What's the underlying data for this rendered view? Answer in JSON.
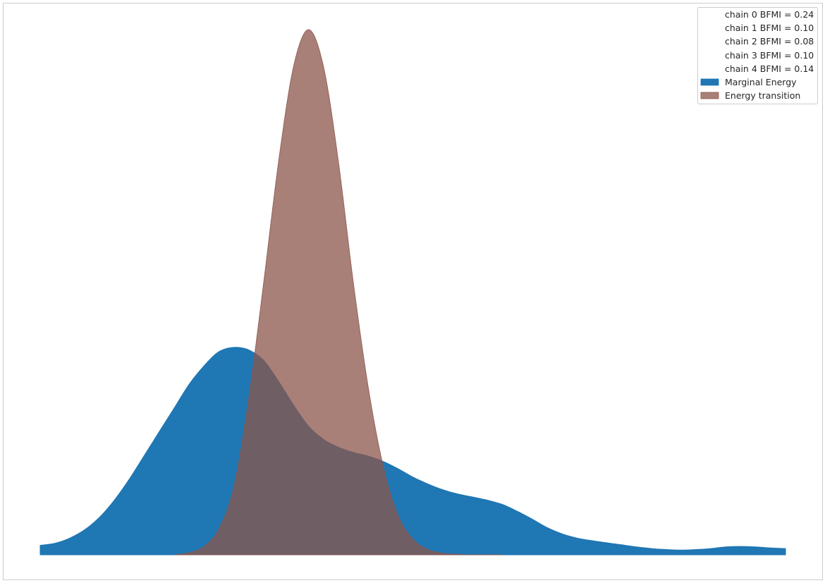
{
  "chart_data": {
    "type": "area",
    "title": "",
    "xlabel": "",
    "ylabel": "",
    "grid": false,
    "x_ticks_visible": false,
    "y_ticks_visible": false,
    "legend_position": "top-right",
    "legend": {
      "bfmi_entries": [
        {
          "label": "chain  0 BFMI = 0.24"
        },
        {
          "label": "chain  1 BFMI = 0.10"
        },
        {
          "label": "chain  2 BFMI = 0.08"
        },
        {
          "label": "chain  3 BFMI = 0.10"
        },
        {
          "label": "chain  4 BFMI = 0.14"
        }
      ]
    },
    "xlim": [
      0,
      1
    ],
    "ylim": [
      0,
      1
    ],
    "series": [
      {
        "name": "Marginal Energy",
        "color": "#1f77b4",
        "opacity": 1.0,
        "x": [
          0.0,
          0.02,
          0.04,
          0.06,
          0.08,
          0.1,
          0.12,
          0.14,
          0.16,
          0.18,
          0.2,
          0.22,
          0.24,
          0.26,
          0.28,
          0.3,
          0.32,
          0.34,
          0.36,
          0.38,
          0.4,
          0.42,
          0.44,
          0.46,
          0.48,
          0.5,
          0.52,
          0.54,
          0.56,
          0.58,
          0.6,
          0.62,
          0.64,
          0.66,
          0.68,
          0.7,
          0.72,
          0.74,
          0.76,
          0.78,
          0.8,
          0.82,
          0.84,
          0.86,
          0.88,
          0.9,
          0.92,
          0.94,
          0.96,
          0.98,
          1.0
        ],
        "y": [
          0.018,
          0.022,
          0.032,
          0.048,
          0.072,
          0.105,
          0.145,
          0.19,
          0.235,
          0.28,
          0.325,
          0.36,
          0.387,
          0.395,
          0.39,
          0.37,
          0.33,
          0.285,
          0.245,
          0.22,
          0.205,
          0.195,
          0.188,
          0.178,
          0.164,
          0.148,
          0.135,
          0.124,
          0.116,
          0.11,
          0.104,
          0.096,
          0.083,
          0.068,
          0.052,
          0.04,
          0.032,
          0.027,
          0.023,
          0.019,
          0.015,
          0.012,
          0.01,
          0.009,
          0.01,
          0.012,
          0.015,
          0.016,
          0.015,
          0.013,
          0.012
        ]
      },
      {
        "name": "Energy transition",
        "color": "#8c564b",
        "opacity": 0.75,
        "x": [
          0.18,
          0.2,
          0.22,
          0.24,
          0.26,
          0.28,
          0.3,
          0.32,
          0.34,
          0.36,
          0.38,
          0.4,
          0.42,
          0.44,
          0.46,
          0.48,
          0.5,
          0.52,
          0.54,
          0.56,
          0.58,
          0.6,
          0.62
        ],
        "y": [
          0.0,
          0.004,
          0.016,
          0.05,
          0.13,
          0.3,
          0.52,
          0.75,
          0.93,
          1.0,
          0.93,
          0.75,
          0.52,
          0.32,
          0.17,
          0.075,
          0.03,
          0.01,
          0.003,
          0.001,
          0.0,
          0.0,
          0.0
        ]
      }
    ]
  }
}
